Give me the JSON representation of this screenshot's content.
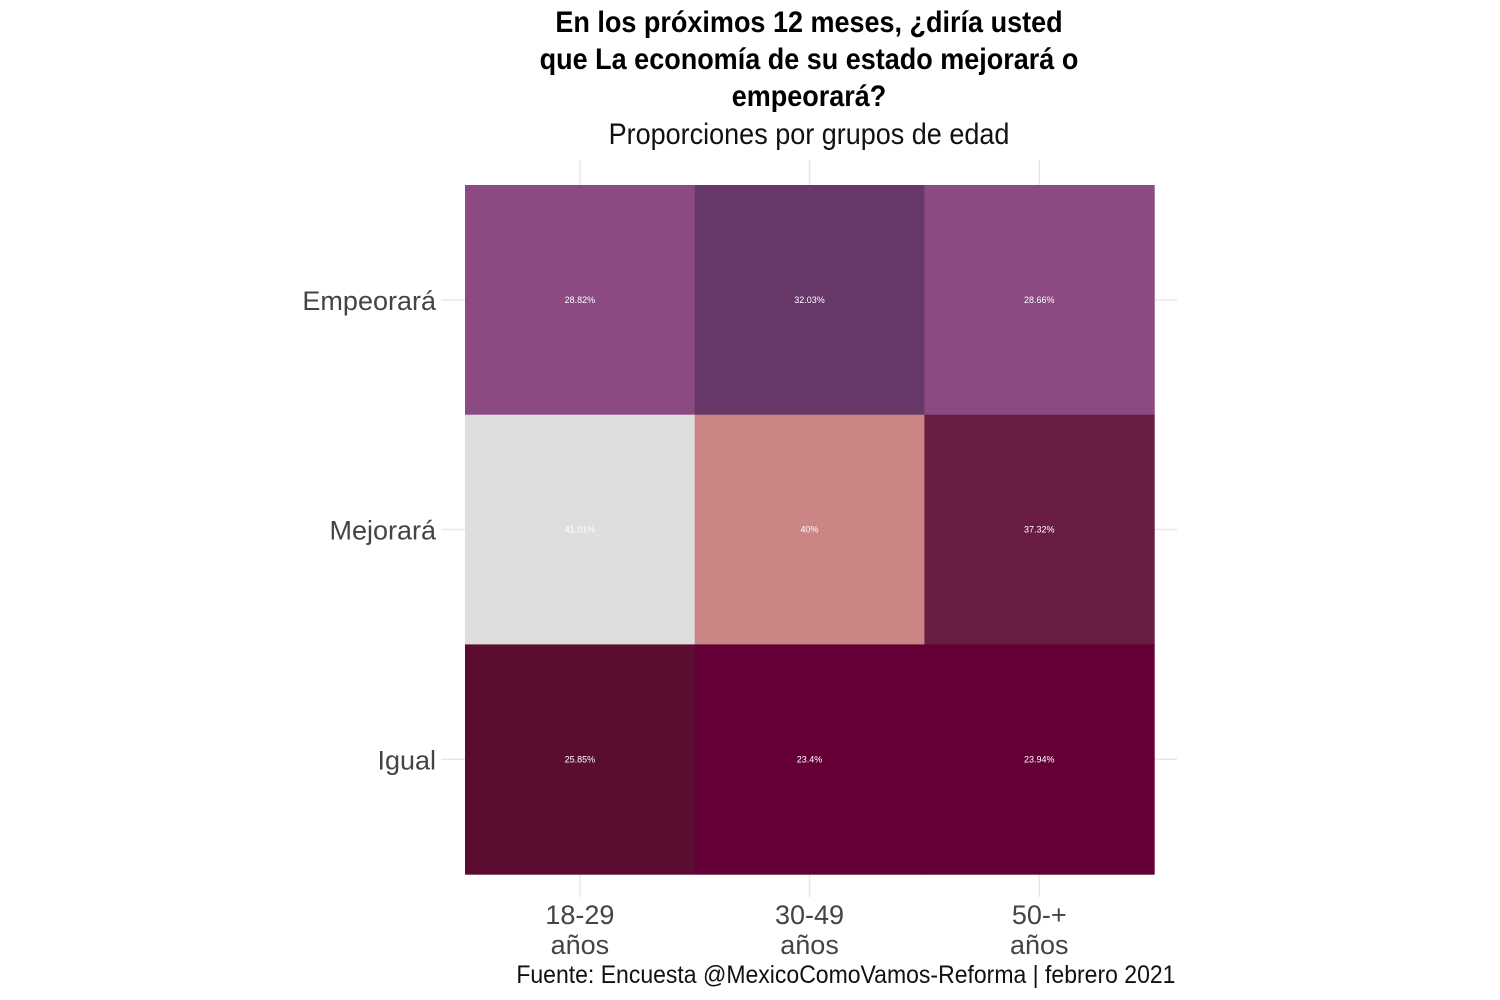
{
  "chart_data": {
    "type": "heatmap",
    "title": "En los próximos 12 meses, ¿diría usted que La economía de su estado mejorará o empeorará?",
    "title_lines": [
      "En los próximos 12 meses, ¿diría usted",
      "que La economía de su estado mejorará o",
      "empeorará?"
    ],
    "subtitle": "Proporciones por grupos de edad",
    "caption": "Fuente: Encuesta @MexicoComoVamos-Reforma | febrero 2021",
    "x_categories": [
      [
        "18-29",
        "años"
      ],
      [
        "30-49",
        "años"
      ],
      [
        "50-+",
        "años"
      ]
    ],
    "y_categories": [
      "Empeorará",
      "Mejorará",
      "Igual"
    ],
    "cells": [
      {
        "x": 0,
        "y": 0,
        "value": 28.82,
        "label": "28.82%",
        "color": "#8b4a81"
      },
      {
        "x": 1,
        "y": 0,
        "value": 32.03,
        "label": "32.03%",
        "color": "#673868"
      },
      {
        "x": 2,
        "y": 0,
        "value": 28.66,
        "label": "28.66%",
        "color": "#8b4a81"
      },
      {
        "x": 0,
        "y": 1,
        "value": 41.01,
        "label": "41.01%",
        "color": "#e0dddd"
      },
      {
        "x": 1,
        "y": 1,
        "value": 40,
        "label": "40%",
        "color": "#cc8585"
      },
      {
        "x": 2,
        "y": 1,
        "value": 37.32,
        "label": "37.32%",
        "color": "#6a1d43"
      },
      {
        "x": 0,
        "y": 2,
        "value": 25.85,
        "label": "25.85%",
        "color": "#5a0d31"
      },
      {
        "x": 1,
        "y": 2,
        "value": 23.4,
        "label": "23.4%",
        "color": "#650037"
      },
      {
        "x": 2,
        "y": 2,
        "value": 23.94,
        "label": "23.94%",
        "color": "#650037"
      }
    ],
    "grid": true,
    "legend": "none"
  }
}
